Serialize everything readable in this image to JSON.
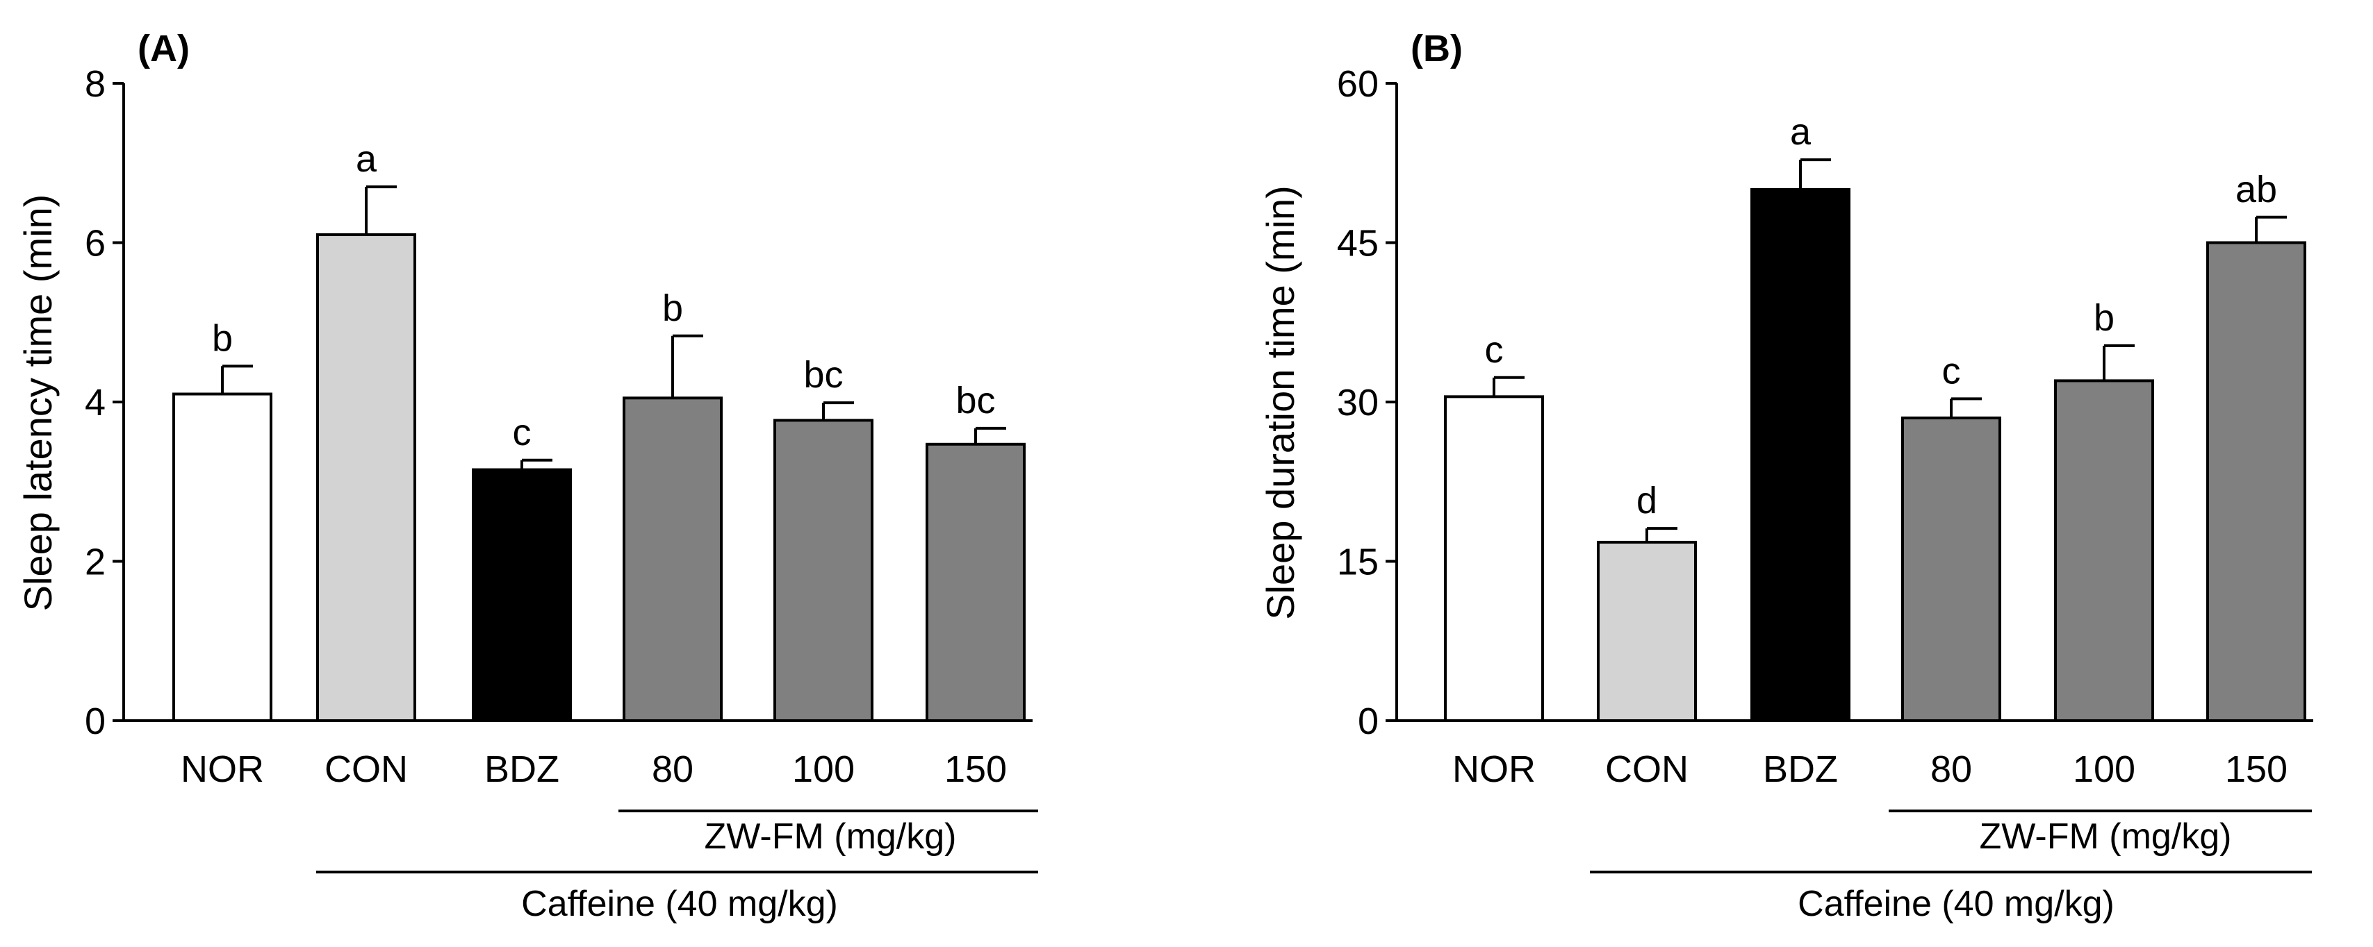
{
  "chart_data": [
    {
      "type": "bar",
      "panel_label": "(A)",
      "ylabel": "Sleep latency time (min)",
      "ylim": [
        0,
        8
      ],
      "yticks": [
        0,
        2,
        4,
        6,
        8
      ],
      "ytick_labels": [
        "0",
        "2",
        "4",
        "6",
        "8"
      ],
      "categories": [
        "NOR",
        "CON",
        "BDZ",
        "80",
        "100",
        "150"
      ],
      "values": [
        4.1,
        6.1,
        3.15,
        4.05,
        3.77,
        3.47
      ],
      "errors": [
        0.35,
        0.6,
        0.12,
        0.78,
        0.22,
        0.2
      ],
      "significance": [
        "b",
        "a",
        "c",
        "b",
        "bc",
        "bc"
      ],
      "bar_colors": [
        "#ffffff",
        "#d3d3d3",
        "#000000",
        "#808080",
        "#808080",
        "#808080"
      ],
      "group_labels": {
        "dose": "ZW-FM (mg/kg)",
        "treatment": "Caffeine (40 mg/kg)"
      }
    },
    {
      "type": "bar",
      "panel_label": "(B)",
      "ylabel": "Sleep duration time (min)",
      "ylim": [
        0,
        60
      ],
      "yticks": [
        0,
        15,
        30,
        45,
        60
      ],
      "ytick_labels": [
        "0",
        "15",
        "30",
        "45",
        "60"
      ],
      "categories": [
        "NOR",
        "CON",
        "BDZ",
        "80",
        "100",
        "150"
      ],
      "values": [
        30.5,
        16.8,
        50.0,
        28.5,
        32.0,
        45.0
      ],
      "errors": [
        1.8,
        1.3,
        2.8,
        1.8,
        3.3,
        2.4
      ],
      "significance": [
        "c",
        "d",
        "a",
        "c",
        "b",
        "ab"
      ],
      "bar_colors": [
        "#ffffff",
        "#d3d3d3",
        "#000000",
        "#808080",
        "#808080",
        "#808080"
      ],
      "group_labels": {
        "dose": "ZW-FM (mg/kg)",
        "treatment": "Caffeine (40 mg/kg)"
      }
    }
  ]
}
